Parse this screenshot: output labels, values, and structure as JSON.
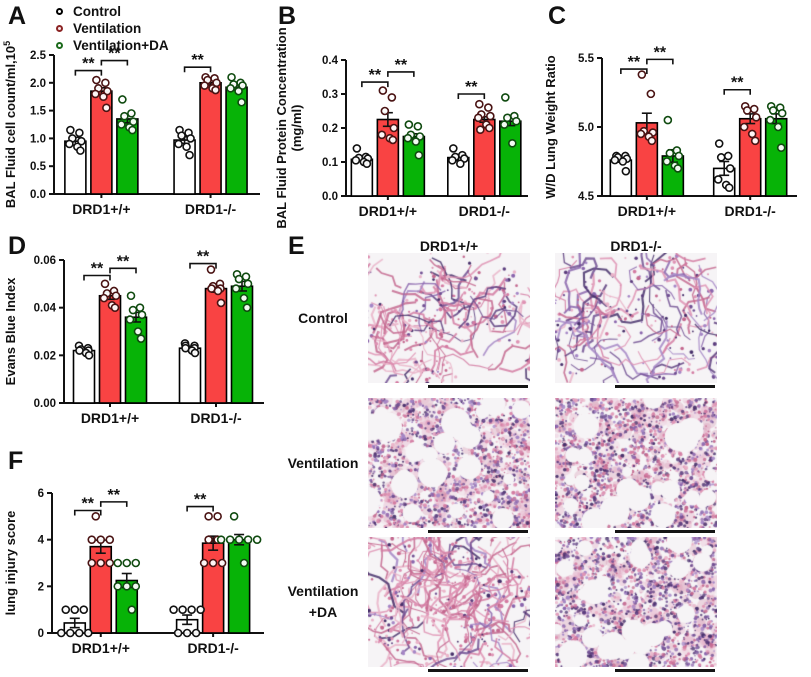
{
  "legend": {
    "items": [
      {
        "label": "Control",
        "fill": "#ffffff",
        "edge": "#000000"
      },
      {
        "label": "Ventilation",
        "fill": "#fbe9ec",
        "edge": "#8b2424"
      },
      {
        "label": "Ventilation+DA",
        "fill": "#ffffff",
        "edge": "#1c6b1c"
      }
    ]
  },
  "chart_data": [
    {
      "type": "bar",
      "panel": "A",
      "ylabel": "BAL Fluid cell count/ml,10",
      "ylabel_sup": "5",
      "ylim": [
        0,
        2.5
      ],
      "yticks": [
        0.0,
        0.5,
        1.0,
        1.5,
        2.0,
        2.5
      ],
      "ytick_decimals": 1,
      "groups": [
        "DRD1+/+",
        "DRD1-/-"
      ],
      "series": [
        {
          "name": "Control",
          "fill": "#ffffff",
          "edge": "#000000",
          "point_edge": "#111111",
          "means": [
            0.95,
            0.97
          ],
          "errors": [
            0.07,
            0.06
          ],
          "points": [
            [
              1.15,
              1.1,
              1.0,
              0.95,
              0.9,
              0.85,
              0.78
            ],
            [
              1.15,
              1.1,
              1.05,
              1.0,
              0.9,
              0.85,
              0.7
            ]
          ]
        },
        {
          "name": "Ventilation",
          "fill": "#f94343",
          "edge": "#000000",
          "point_edge": "#4a1313",
          "means": [
            1.85,
            2.0
          ],
          "errors": [
            0.06,
            0.04
          ],
          "points": [
            [
              2.05,
              2.0,
              1.9,
              1.85,
              1.8,
              1.75,
              1.55
            ],
            [
              2.1,
              2.08,
              2.05,
              2.0,
              1.95,
              1.9,
              1.87
            ]
          ]
        },
        {
          "name": "Ventilation+DA",
          "fill": "#07b307",
          "edge": "#000000",
          "point_edge": "#0f4a0f",
          "means": [
            1.35,
            1.92
          ],
          "errors": [
            0.07,
            0.05
          ],
          "points": [
            [
              1.7,
              1.45,
              1.4,
              1.3,
              1.25,
              1.2,
              1.15
            ],
            [
              2.1,
              2.0,
              1.97,
              1.95,
              1.9,
              1.85,
              1.65
            ]
          ]
        }
      ],
      "significance": [
        {
          "group": 0,
          "from": 0,
          "to": 1,
          "label": "**",
          "y": 2.22
        },
        {
          "group": 0,
          "from": 1,
          "to": 2,
          "label": "**",
          "y": 2.4
        },
        {
          "group": 1,
          "from": 0,
          "to": 1,
          "label": "**",
          "y": 2.28
        }
      ]
    },
    {
      "type": "bar",
      "panel": "B",
      "ylabel": "BAL Fluid Protein Concentration",
      "ylabel2": "(mg/ml)",
      "ylim": [
        0,
        0.4
      ],
      "yticks": [
        0.0,
        0.1,
        0.2,
        0.3,
        0.4
      ],
      "ytick_decimals": 1,
      "groups": [
        "DRD1+/+",
        "DRD1-/-"
      ],
      "series": [
        {
          "name": "Control",
          "fill": "#ffffff",
          "edge": "#000000",
          "point_edge": "#111111",
          "means": [
            0.108,
            0.113
          ],
          "errors": [
            0.006,
            0.009
          ],
          "points": [
            [
              0.14,
              0.115,
              0.112,
              0.11,
              0.105,
              0.1,
              0.095
            ],
            [
              0.14,
              0.12,
              0.115,
              0.11,
              0.105,
              0.095
            ]
          ]
        },
        {
          "name": "Ventilation",
          "fill": "#f94343",
          "edge": "#000000",
          "point_edge": "#4a1313",
          "means": [
            0.225,
            0.225
          ],
          "errors": [
            0.02,
            0.008
          ],
          "points": [
            [
              0.31,
              0.29,
              0.25,
              0.2,
              0.18,
              0.17,
              0.165
            ],
            [
              0.27,
              0.26,
              0.24,
              0.235,
              0.23,
              0.21,
              0.2,
              0.195
            ]
          ]
        },
        {
          "name": "Ventilation+DA",
          "fill": "#07b307",
          "edge": "#000000",
          "point_edge": "#0f4a0f",
          "means": [
            0.175,
            0.22
          ],
          "errors": [
            0.008,
            0.013
          ],
          "points": [
            [
              0.21,
              0.205,
              0.18,
              0.175,
              0.17,
              0.16,
              0.12
            ],
            [
              0.29,
              0.235,
              0.23,
              0.22,
              0.21,
              0.155
            ]
          ]
        }
      ],
      "significance": [
        {
          "group": 0,
          "from": 0,
          "to": 1,
          "label": "**",
          "y": 0.335
        },
        {
          "group": 0,
          "from": 1,
          "to": 2,
          "label": "**",
          "y": 0.365
        },
        {
          "group": 1,
          "from": 0,
          "to": 1,
          "label": "**",
          "y": 0.3
        }
      ]
    },
    {
      "type": "bar",
      "panel": "C",
      "ylabel": "W/D Lung Weight Ratio",
      "ylim": [
        4.5,
        5.5
      ],
      "yticks": [
        4.5,
        5.0,
        5.5
      ],
      "ytick_decimals": 1,
      "groups": [
        "DRD1+/+",
        "DRD1-/-"
      ],
      "series": [
        {
          "name": "Control",
          "fill": "#ffffff",
          "edge": "#000000",
          "point_edge": "#111111",
          "means": [
            4.76,
            4.7
          ],
          "errors": [
            0.015,
            0.05
          ],
          "points": [
            [
              4.79,
              4.79,
              4.78,
              4.77,
              4.76,
              4.75,
              4.68
            ],
            [
              4.88,
              4.79,
              4.78,
              4.7,
              4.62,
              4.58,
              4.56
            ]
          ]
        },
        {
          "name": "Ventilation",
          "fill": "#f94343",
          "edge": "#000000",
          "point_edge": "#4a1313",
          "means": [
            5.03,
            5.06
          ],
          "errors": [
            0.07,
            0.035
          ],
          "points": [
            [
              5.38,
              5.24,
              4.97,
              4.96,
              4.95,
              4.93,
              4.9
            ],
            [
              5.15,
              5.13,
              5.12,
              5.07,
              5.0,
              4.95,
              4.9
            ]
          ]
        },
        {
          "name": "Ventilation+DA",
          "fill": "#07b307",
          "edge": "#000000",
          "point_edge": "#0f4a0f",
          "means": [
            4.79,
            5.06
          ],
          "errors": [
            0.045,
            0.035
          ],
          "points": [
            [
              5.05,
              4.83,
              4.81,
              4.79,
              4.75,
              4.72,
              4.7
            ],
            [
              5.15,
              5.14,
              5.12,
              5.1,
              5.05,
              5.0,
              4.85
            ]
          ]
        }
      ],
      "significance": [
        {
          "group": 0,
          "from": 0,
          "to": 1,
          "label": "**",
          "y": 5.42
        },
        {
          "group": 0,
          "from": 1,
          "to": 2,
          "label": "**",
          "y": 5.49
        },
        {
          "group": 1,
          "from": 0,
          "to": 1,
          "label": "**",
          "y": 5.27
        }
      ]
    },
    {
      "type": "bar",
      "panel": "D",
      "ylabel": "Evans Blue Index",
      "ylim": [
        0,
        0.06
      ],
      "yticks": [
        0.0,
        0.02,
        0.04,
        0.06
      ],
      "ytick_decimals": 2,
      "groups": [
        "DRD1+/+",
        "DRD1-/-"
      ],
      "series": [
        {
          "name": "Control",
          "fill": "#ffffff",
          "edge": "#000000",
          "point_edge": "#111111",
          "means": [
            0.022,
            0.023
          ],
          "errors": [
            0.0008,
            0.0008
          ],
          "points": [
            [
              0.024,
              0.023,
              0.0225,
              0.022,
              0.022,
              0.021,
              0.02
            ],
            [
              0.025,
              0.024,
              0.024,
              0.023,
              0.023,
              0.022,
              0.021
            ]
          ]
        },
        {
          "name": "Ventilation",
          "fill": "#f94343",
          "edge": "#000000",
          "point_edge": "#4a1313",
          "means": [
            0.045,
            0.048
          ],
          "errors": [
            0.0015,
            0.0015
          ],
          "points": [
            [
              0.05,
              0.047,
              0.046,
              0.045,
              0.044,
              0.041,
              0.04
            ],
            [
              0.056,
              0.05,
              0.049,
              0.048,
              0.048,
              0.047,
              0.042
            ]
          ]
        },
        {
          "name": "Ventilation+DA",
          "fill": "#07b307",
          "edge": "#000000",
          "point_edge": "#0f4a0f",
          "means": [
            0.036,
            0.049
          ],
          "errors": [
            0.002,
            0.002
          ],
          "points": [
            [
              0.045,
              0.04,
              0.039,
              0.037,
              0.035,
              0.03,
              0.027
            ],
            [
              0.054,
              0.053,
              0.052,
              0.05,
              0.048,
              0.044,
              0.04
            ]
          ]
        }
      ],
      "significance": [
        {
          "group": 0,
          "from": 0,
          "to": 1,
          "label": "**",
          "y": 0.0535
        },
        {
          "group": 0,
          "from": 1,
          "to": 2,
          "label": "**",
          "y": 0.0565
        },
        {
          "group": 1,
          "from": 0,
          "to": 1,
          "label": "**",
          "y": 0.0585
        }
      ]
    },
    {
      "type": "bar",
      "panel": "F",
      "ylabel": "lung injury score",
      "ylim": [
        0,
        6
      ],
      "yticks": [
        0,
        2,
        4,
        6
      ],
      "ytick_decimals": 0,
      "groups": [
        "DRD1+/+",
        "DRD1-/-"
      ],
      "series": [
        {
          "name": "Control",
          "fill": "#ffffff",
          "edge": "#000000",
          "point_edge": "#111111",
          "means": [
            0.43,
            0.57
          ],
          "errors": [
            0.2,
            0.2
          ],
          "points": [
            [
              1,
              1,
              1,
              0,
              0,
              0,
              0
            ],
            [
              1,
              1,
              1,
              1,
              0,
              0,
              0
            ]
          ]
        },
        {
          "name": "Ventilation",
          "fill": "#f94343",
          "edge": "#000000",
          "point_edge": "#4a1313",
          "means": [
            3.7,
            3.85
          ],
          "errors": [
            0.28,
            0.3
          ],
          "points": [
            [
              5,
              4,
              4,
              4,
              3,
              3,
              3
            ],
            [
              5,
              5,
              4,
              4,
              3,
              3,
              3
            ]
          ]
        },
        {
          "name": "Ventilation+DA",
          "fill": "#07b307",
          "edge": "#000000",
          "point_edge": "#0f4a0f",
          "means": [
            2.25,
            4.0
          ],
          "errors": [
            0.3,
            0.22
          ],
          "points": [
            [
              3,
              3,
              3,
              2,
              2,
              2,
              1
            ],
            [
              5,
              4,
              4,
              4,
              4,
              4,
              3
            ]
          ]
        }
      ],
      "significance": [
        {
          "group": 0,
          "from": 0,
          "to": 1,
          "label": "**",
          "y": 5.25
        },
        {
          "group": 0,
          "from": 1,
          "to": 2,
          "label": "**",
          "y": 5.62
        },
        {
          "group": 1,
          "from": 0,
          "to": 1,
          "label": "**",
          "y": 5.42
        }
      ]
    }
  ],
  "panel_e": {
    "letter": "E",
    "columns": [
      "DRD1+/+",
      "DRD1-/-"
    ],
    "rows": [
      {
        "label": "Control",
        "label2": "",
        "cells": [
          {
            "style": "sparse",
            "tint": "pink"
          },
          {
            "style": "sparse",
            "tint": "purple"
          }
        ]
      },
      {
        "label": "Ventilation",
        "label2": "",
        "cells": [
          {
            "style": "dense",
            "tint": "mixed"
          },
          {
            "style": "dense",
            "tint": "mixed"
          }
        ]
      },
      {
        "label": "Ventilation",
        "label2": "+DA",
        "cells": [
          {
            "style": "medium",
            "tint": "pink"
          },
          {
            "style": "dense",
            "tint": "purple"
          }
        ]
      }
    ]
  }
}
